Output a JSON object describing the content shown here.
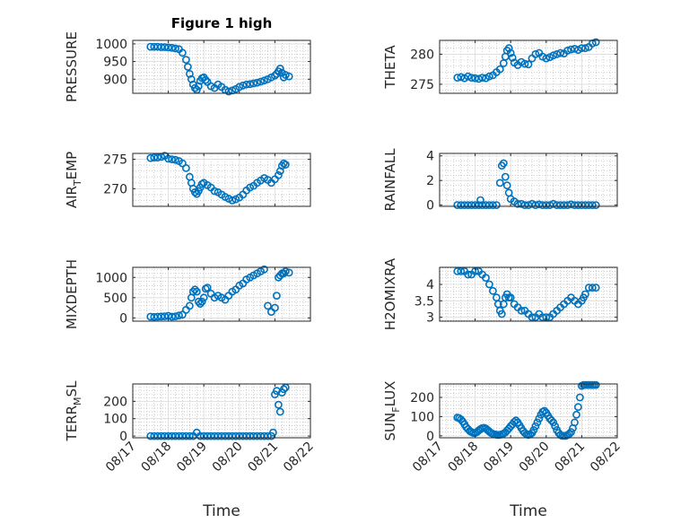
{
  "figure": {
    "title": "Figure 1 high",
    "colors": {
      "marker": "#0072BD",
      "axis": "#262626",
      "grid": "#b0b0b0",
      "background": "#ffffff"
    },
    "xlabel": "Time"
  },
  "chart_data": [
    {
      "type": "scatter",
      "id": "pressure",
      "title": "Figure 1 high",
      "ylabel": {
        "base": "PRESSURE",
        "sub": "",
        "rest": ""
      },
      "ylim": [
        860,
        1010
      ],
      "yticks": [
        900,
        950,
        1000
      ],
      "xlim": [
        "08/17",
        "08/22"
      ],
      "xticklabels": [],
      "grid": true,
      "x": [
        17.5,
        17.6,
        17.7,
        17.8,
        17.9,
        18.0,
        18.1,
        18.2,
        18.3,
        18.4,
        18.5,
        18.55,
        18.6,
        18.65,
        18.7,
        18.75,
        18.8,
        18.85,
        18.9,
        18.95,
        19.0,
        19.05,
        19.1,
        19.2,
        19.3,
        19.4,
        19.5,
        19.6,
        19.7,
        19.8,
        19.9,
        20.0,
        20.1,
        20.2,
        20.3,
        20.4,
        20.5,
        20.6,
        20.7,
        20.8,
        20.9,
        21.0,
        21.05,
        21.1,
        21.15,
        21.2,
        21.25,
        21.3,
        21.4
      ],
      "y": [
        992,
        992,
        992,
        991,
        991,
        990,
        989,
        987,
        985,
        975,
        955,
        935,
        915,
        900,
        885,
        875,
        870,
        880,
        895,
        903,
        905,
        898,
        892,
        880,
        875,
        885,
        878,
        870,
        865,
        868,
        872,
        878,
        882,
        885,
        886,
        888,
        890,
        893,
        896,
        900,
        905,
        910,
        915,
        922,
        930,
        918,
        905,
        912,
        908
      ]
    },
    {
      "type": "scatter",
      "id": "theta",
      "ylabel": {
        "base": "THETA",
        "sub": "",
        "rest": ""
      },
      "ylim": [
        273.5,
        282.3
      ],
      "yticks": [
        275,
        280
      ],
      "xlim": [
        "08/17",
        "08/22"
      ],
      "xticklabels": [],
      "grid": true,
      "x": [
        17.5,
        17.6,
        17.7,
        17.8,
        17.9,
        18.0,
        18.1,
        18.2,
        18.3,
        18.4,
        18.5,
        18.6,
        18.7,
        18.8,
        18.85,
        18.9,
        18.95,
        19.0,
        19.05,
        19.1,
        19.2,
        19.3,
        19.4,
        19.5,
        19.6,
        19.7,
        19.8,
        19.9,
        20.0,
        20.1,
        20.2,
        20.3,
        20.4,
        20.5,
        20.6,
        20.7,
        20.8,
        20.9,
        21.0,
        21.1,
        21.2,
        21.3,
        21.4
      ],
      "y": [
        276.1,
        276.2,
        276.0,
        276.3,
        276.1,
        276.0,
        275.9,
        276.1,
        276.0,
        276.3,
        276.5,
        277.0,
        277.5,
        278.5,
        279.6,
        280.6,
        281.0,
        280.2,
        279.4,
        278.6,
        278.2,
        278.7,
        278.4,
        278.3,
        279.3,
        280.0,
        280.2,
        279.6,
        279.3,
        279.5,
        279.8,
        280.0,
        280.2,
        280.1,
        280.6,
        280.8,
        280.9,
        280.7,
        281.0,
        281.0,
        281.2,
        281.8,
        282.0
      ]
    },
    {
      "type": "scatter",
      "id": "air_temp",
      "ylabel": {
        "base": "AIR",
        "sub": "T",
        "rest": "EMP"
      },
      "ylim": [
        267,
        276
      ],
      "yticks": [
        270,
        275
      ],
      "xlim": [
        "08/17",
        "08/22"
      ],
      "xticklabels": [],
      "grid": true,
      "x": [
        17.5,
        17.6,
        17.7,
        17.8,
        17.9,
        18.0,
        18.1,
        18.2,
        18.3,
        18.4,
        18.5,
        18.6,
        18.65,
        18.7,
        18.75,
        18.8,
        18.85,
        18.9,
        18.95,
        19.0,
        19.1,
        19.2,
        19.3,
        19.4,
        19.5,
        19.6,
        19.7,
        19.8,
        19.9,
        20.0,
        20.1,
        20.2,
        20.3,
        20.4,
        20.5,
        20.6,
        20.7,
        20.8,
        20.9,
        21.0,
        21.1,
        21.15,
        21.2,
        21.25,
        21.3
      ],
      "y": [
        275.2,
        275.3,
        275.3,
        275.4,
        275.6,
        275.1,
        275.0,
        274.9,
        274.7,
        274.3,
        273.5,
        272.0,
        271.0,
        270.0,
        269.4,
        269.1,
        269.6,
        270.2,
        270.8,
        271.0,
        270.6,
        270.2,
        269.6,
        269.4,
        269.0,
        268.6,
        268.3,
        268.0,
        268.2,
        268.5,
        269.0,
        269.7,
        270.2,
        270.5,
        271.0,
        271.4,
        271.8,
        271.5,
        271.0,
        271.6,
        272.3,
        273.0,
        273.9,
        274.3,
        274.1
      ]
    },
    {
      "type": "scatter",
      "id": "rainfall",
      "ylabel": {
        "base": "RAINFALL",
        "sub": "",
        "rest": ""
      },
      "ylim": [
        -0.1,
        4.2
      ],
      "yticks": [
        0,
        2,
        4
      ],
      "xlim": [
        "08/17",
        "08/22"
      ],
      "xticklabels": [],
      "grid": true,
      "x": [
        17.5,
        17.6,
        17.7,
        17.8,
        17.9,
        18.0,
        18.1,
        18.15,
        18.2,
        18.3,
        18.4,
        18.5,
        18.6,
        18.7,
        18.75,
        18.8,
        18.85,
        18.9,
        18.95,
        19.0,
        19.1,
        19.2,
        19.3,
        19.4,
        19.5,
        19.6,
        19.7,
        19.8,
        19.9,
        20.0,
        20.1,
        20.2,
        20.3,
        20.4,
        20.5,
        20.6,
        20.7,
        20.8,
        20.9,
        21.0,
        21.1,
        21.2,
        21.3,
        21.4
      ],
      "y": [
        0,
        0,
        0,
        0,
        0,
        0,
        0,
        0.4,
        0,
        0,
        0,
        0,
        0,
        1.8,
        3.2,
        3.4,
        2.3,
        1.6,
        1.0,
        0.5,
        0.3,
        0.1,
        0.1,
        0,
        0,
        0.1,
        0,
        0.05,
        0,
        0,
        0,
        0.1,
        0,
        0,
        0,
        0,
        0.05,
        0,
        0,
        0,
        0,
        0,
        0,
        0
      ]
    },
    {
      "type": "scatter",
      "id": "mixdepth",
      "ylabel": {
        "base": "MIXDEPTH",
        "sub": "",
        "rest": ""
      },
      "ylim": [
        -80,
        1250
      ],
      "yticks": [
        0,
        500,
        1000
      ],
      "xlim": [
        "08/17",
        "08/22"
      ],
      "xticklabels": [],
      "grid": true,
      "x": [
        17.5,
        17.6,
        17.7,
        17.8,
        17.9,
        18.0,
        18.1,
        18.2,
        18.3,
        18.4,
        18.5,
        18.6,
        18.65,
        18.7,
        18.75,
        18.8,
        18.85,
        18.9,
        18.95,
        19.0,
        19.05,
        19.1,
        19.2,
        19.3,
        19.4,
        19.5,
        19.6,
        19.7,
        19.8,
        19.9,
        20.0,
        20.1,
        20.2,
        20.3,
        20.4,
        20.5,
        20.6,
        20.7,
        20.8,
        20.9,
        21.0,
        21.05,
        21.1,
        21.15,
        21.2,
        21.25,
        21.3,
        21.4
      ],
      "y": [
        30,
        25,
        30,
        35,
        40,
        50,
        30,
        40,
        60,
        80,
        200,
        300,
        500,
        650,
        700,
        650,
        400,
        350,
        400,
        500,
        720,
        750,
        600,
        500,
        550,
        500,
        450,
        550,
        650,
        700,
        800,
        850,
        950,
        1000,
        1050,
        1100,
        1150,
        1200,
        300,
        150,
        250,
        550,
        1000,
        1050,
        1100,
        1100,
        1150,
        1120
      ]
    },
    {
      "type": "scatter",
      "id": "h2omixra",
      "ylabel": {
        "base": "H2OMIXRA",
        "sub": "",
        "rest": ""
      },
      "ylim": [
        2.88,
        4.52
      ],
      "yticks": [
        3,
        3.5,
        4
      ],
      "xlim": [
        "08/17",
        "08/22"
      ],
      "xticklabels": [],
      "grid": true,
      "x": [
        17.5,
        17.6,
        17.7,
        17.8,
        17.9,
        18.0,
        18.1,
        18.2,
        18.3,
        18.4,
        18.5,
        18.6,
        18.65,
        18.7,
        18.75,
        18.8,
        18.85,
        18.9,
        18.95,
        19.0,
        19.1,
        19.2,
        19.3,
        19.4,
        19.5,
        19.6,
        19.7,
        19.8,
        19.9,
        20.0,
        20.1,
        20.2,
        20.3,
        20.4,
        20.5,
        20.6,
        20.7,
        20.8,
        20.9,
        21.0,
        21.05,
        21.1,
        21.2,
        21.3,
        21.4
      ],
      "y": [
        4.4,
        4.4,
        4.4,
        4.3,
        4.3,
        4.4,
        4.4,
        4.3,
        4.2,
        4.0,
        3.8,
        3.6,
        3.4,
        3.2,
        3.1,
        3.4,
        3.6,
        3.7,
        3.6,
        3.6,
        3.4,
        3.3,
        3.2,
        3.2,
        3.1,
        3.0,
        3.0,
        3.1,
        3.0,
        3.0,
        3.0,
        3.1,
        3.2,
        3.3,
        3.4,
        3.5,
        3.6,
        3.5,
        3.4,
        3.5,
        3.6,
        3.7,
        3.9,
        3.9,
        3.9
      ]
    },
    {
      "type": "scatter",
      "id": "terr_msl",
      "ylabel": {
        "base": "TERR",
        "sub": "M",
        "rest": "SL"
      },
      "ylim": [
        -10,
        300
      ],
      "yticks": [
        0,
        100,
        200
      ],
      "xlim": [
        "08/17",
        "08/22"
      ],
      "xticklabels": [
        "08/17",
        "08/18",
        "08/19",
        "08/20",
        "08/21",
        "08/22"
      ],
      "xlabel": "Time",
      "grid": true,
      "x": [
        17.5,
        17.6,
        17.7,
        17.8,
        17.9,
        18.0,
        18.1,
        18.2,
        18.3,
        18.4,
        18.5,
        18.6,
        18.7,
        18.8,
        18.9,
        19.0,
        19.1,
        19.2,
        19.3,
        19.4,
        19.5,
        19.6,
        19.7,
        19.8,
        19.9,
        20.0,
        20.1,
        20.2,
        20.3,
        20.4,
        20.5,
        20.6,
        20.7,
        20.8,
        20.9,
        20.95,
        21.0,
        21.05,
        21.1,
        21.15,
        21.2,
        21.25,
        21.3
      ],
      "y": [
        0,
        0,
        0,
        0,
        0,
        0,
        0,
        0,
        0,
        0,
        0,
        0,
        0,
        20,
        0,
        0,
        0,
        0,
        0,
        0,
        0,
        0,
        0,
        0,
        0,
        0,
        0,
        0,
        0,
        0,
        0,
        0,
        0,
        0,
        0,
        20,
        240,
        260,
        180,
        140,
        250,
        270,
        280
      ]
    },
    {
      "type": "scatter",
      "id": "sun_flux",
      "ylabel": {
        "base": "SUN",
        "sub": "F",
        "rest": "LUX"
      },
      "ylim": [
        -10,
        270
      ],
      "yticks": [
        0,
        100,
        200
      ],
      "xlim": [
        "08/17",
        "08/22"
      ],
      "xticklabels": [
        "08/17",
        "08/18",
        "08/19",
        "08/20",
        "08/21",
        "08/22"
      ],
      "xlabel": "Time",
      "grid": true,
      "x": [
        17.5,
        17.55,
        17.6,
        17.65,
        17.7,
        17.75,
        17.8,
        17.85,
        17.9,
        17.95,
        18.0,
        18.05,
        18.1,
        18.15,
        18.2,
        18.25,
        18.3,
        18.35,
        18.4,
        18.45,
        18.5,
        18.55,
        18.6,
        18.65,
        18.7,
        18.75,
        18.8,
        18.85,
        18.9,
        18.95,
        19.0,
        19.05,
        19.1,
        19.15,
        19.2,
        19.25,
        19.3,
        19.35,
        19.4,
        19.45,
        19.5,
        19.55,
        19.6,
        19.65,
        19.7,
        19.75,
        19.8,
        19.85,
        19.9,
        19.95,
        20.0,
        20.05,
        20.1,
        20.15,
        20.2,
        20.25,
        20.3,
        20.35,
        20.4,
        20.45,
        20.5,
        20.55,
        20.6,
        20.65,
        20.7,
        20.75,
        20.8,
        20.85,
        20.9,
        20.95,
        21.0,
        21.05,
        21.1,
        21.15,
        21.2,
        21.25,
        21.3,
        21.35,
        21.4
      ],
      "y": [
        95,
        92,
        85,
        75,
        60,
        45,
        35,
        25,
        20,
        15,
        15,
        20,
        28,
        35,
        40,
        42,
        38,
        30,
        22,
        15,
        10,
        8,
        6,
        5,
        6,
        8,
        12,
        18,
        28,
        38,
        50,
        60,
        72,
        80,
        70,
        55,
        40,
        25,
        15,
        8,
        5,
        8,
        15,
        30,
        50,
        70,
        90,
        110,
        125,
        130,
        120,
        105,
        90,
        80,
        70,
        50,
        30,
        15,
        5,
        0,
        0,
        0,
        5,
        10,
        20,
        40,
        70,
        110,
        150,
        200,
        260,
        265,
        265,
        265,
        265,
        265,
        265,
        265,
        265
      ]
    }
  ]
}
